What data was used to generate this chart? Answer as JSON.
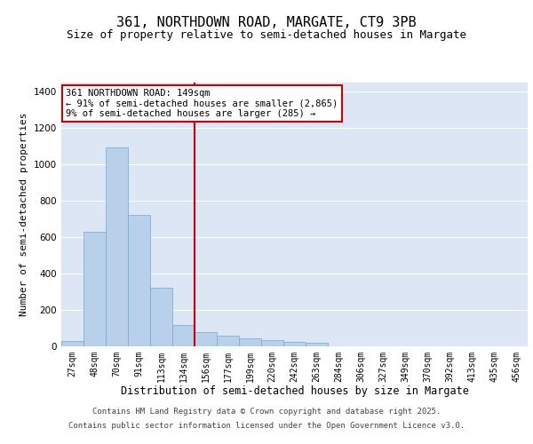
{
  "title1": "361, NORTHDOWN ROAD, MARGATE, CT9 3PB",
  "title2": "Size of property relative to semi-detached houses in Margate",
  "xlabel": "Distribution of semi-detached houses by size in Margate",
  "ylabel": "Number of semi-detached properties",
  "categories": [
    "27sqm",
    "48sqm",
    "70sqm",
    "91sqm",
    "113sqm",
    "134sqm",
    "156sqm",
    "177sqm",
    "199sqm",
    "220sqm",
    "242sqm",
    "263sqm",
    "284sqm",
    "306sqm",
    "327sqm",
    "349sqm",
    "370sqm",
    "392sqm",
    "413sqm",
    "435sqm",
    "456sqm"
  ],
  "values": [
    30,
    630,
    1090,
    720,
    320,
    115,
    80,
    60,
    45,
    35,
    25,
    20,
    0,
    0,
    0,
    0,
    0,
    0,
    0,
    0,
    0
  ],
  "bar_color": "#b8d0ea",
  "bar_edge_color": "#6fa8d4",
  "vline_color": "#cc0000",
  "annotation_line1": "361 NORTHDOWN ROAD: 149sqm",
  "annotation_line2": "← 91% of semi-detached houses are smaller (2,865)",
  "annotation_line3": "9% of semi-detached houses are larger (285) →",
  "annotation_box_edge_color": "#cc0000",
  "ylim": [
    0,
    1450
  ],
  "yticks": [
    0,
    200,
    400,
    600,
    800,
    1000,
    1200,
    1400
  ],
  "background_color": "#dce6f5",
  "grid_color": "#ffffff",
  "footer_line1": "Contains HM Land Registry data © Crown copyright and database right 2025.",
  "footer_line2": "Contains public sector information licensed under the Open Government Licence v3.0.",
  "title1_fontsize": 11,
  "title2_fontsize": 9,
  "xlabel_fontsize": 8.5,
  "ylabel_fontsize": 8,
  "annotation_fontsize": 7.5,
  "tick_fontsize": 7,
  "footer_fontsize": 6.5,
  "vline_position": 5.5
}
